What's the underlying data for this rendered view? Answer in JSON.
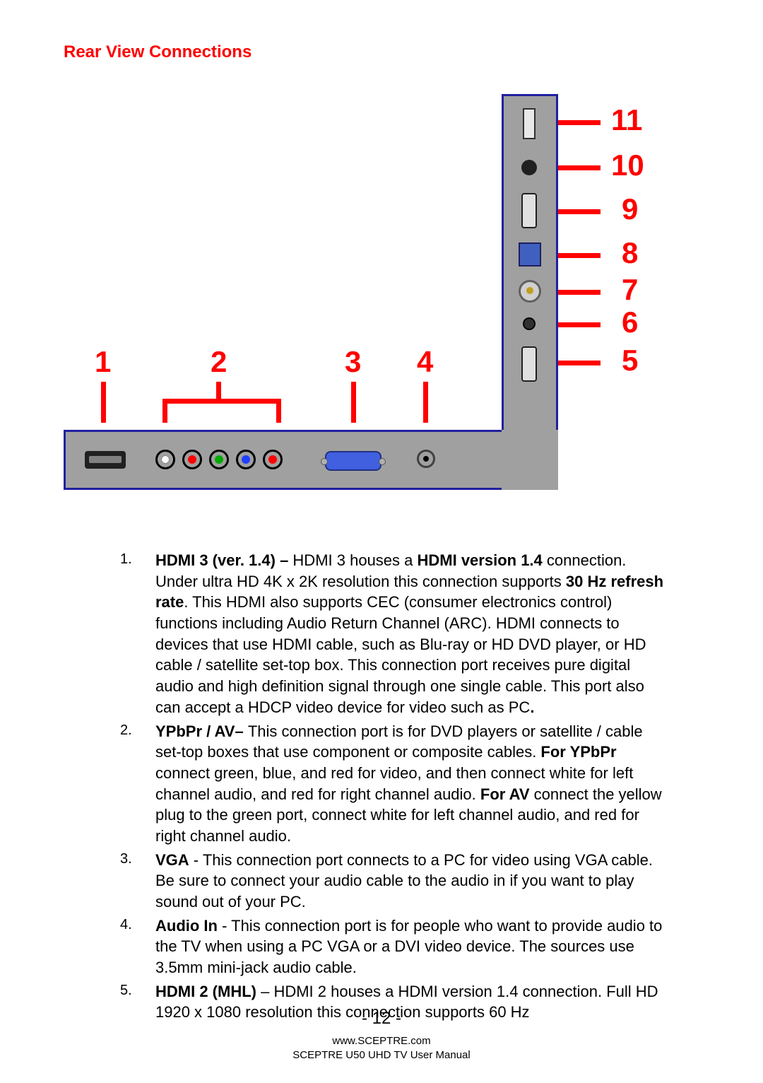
{
  "title": "Rear View Connections",
  "title_color": "#ff0000",
  "labels": {
    "top": [
      "1",
      "2",
      "3",
      "4"
    ],
    "right": [
      "11",
      "10",
      "9",
      "8",
      "7",
      "6",
      "5"
    ]
  },
  "label_color": "#ff0000",
  "label_fontsize": 42,
  "panel_border_color": "#2020a0",
  "panel_fill_color": "#a0a0a0",
  "callout_line_color": "#ff0000",
  "callout_line_width": 7,
  "ports": {
    "bottom": [
      {
        "type": "hdmi",
        "label": "HDMI 3"
      },
      {
        "type": "rca5",
        "colors": [
          "#ffffff",
          "#ff0000",
          "#00aa00",
          "#2040ff",
          "#ff0000"
        ]
      },
      {
        "type": "vga",
        "color": "#4060e0"
      },
      {
        "type": "jack",
        "color": "#303030"
      }
    ],
    "side": [
      {
        "type": "usb"
      },
      {
        "type": "jack-small"
      },
      {
        "type": "hdmi-v"
      },
      {
        "type": "optical"
      },
      {
        "type": "coax"
      },
      {
        "type": "jack-tiny"
      },
      {
        "type": "hdmi-v"
      }
    ]
  },
  "list": [
    {
      "lead": "HDMI 3 (ver. 1.4) – ",
      "body": "HDMI 3 houses a <b>HDMI version 1.4</b> connection. Under ultra HD 4K x 2K resolution this connection supports <b>30 Hz refresh rate</b>.  This HDMI also supports CEC (consumer electronics control) functions including Audio Return Channel (ARC). HDMI connects to devices that use HDMI cable, such as Blu-ray or HD DVD player, or HD cable / satellite set-top box.  This connection port receives pure digital audio and high definition signal through one single cable.  This port also can accept a HDCP video device for video such as PC<b>.</b>"
    },
    {
      "lead": "YPbPr / AV– ",
      "body": "This connection port is for DVD players or satellite / cable set-top boxes that use component or composite cables.  <b>For YPbPr</b> connect green, blue, and red for video, and then connect white for left channel audio, and red for right channel audio.  <b>For AV</b> connect the yellow plug to the green port, connect white for left channel audio, and red for right channel audio."
    },
    {
      "lead": "VGA",
      "body": " - This connection port connects to a PC for video using VGA cable. Be sure to connect your audio cable to the audio in if you want to play sound out of your PC."
    },
    {
      "lead": "Audio In",
      "body": " - This connection port is for people who want to provide audio to the TV when using a PC VGA or a DVI video device. The sources use 3.5mm mini-jack audio cable."
    },
    {
      "lead": "HDMI 2 (MHL)",
      "body": " – HDMI 2 houses a HDMI version 1.4 connection. Full HD 1920 x 1080 resolution this connection supports 60 Hz"
    }
  ],
  "page_number": "- 12 -",
  "footer_url": "www.SCEPTRE.com",
  "footer_manual": "SCEPTRE U50 UHD TV User Manual"
}
